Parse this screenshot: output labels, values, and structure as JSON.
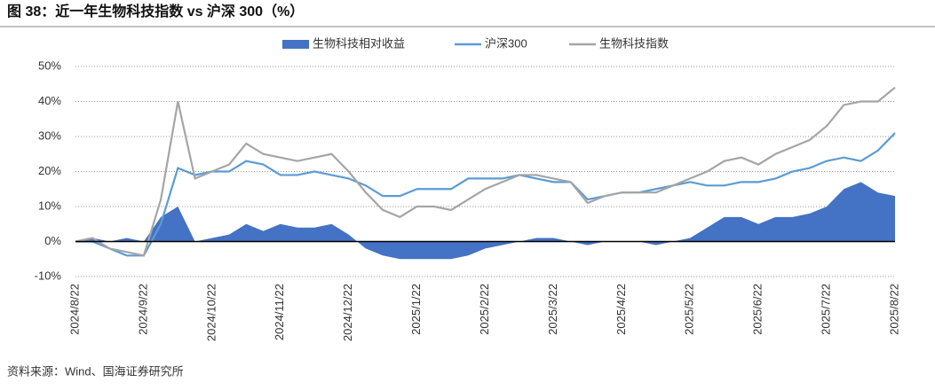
{
  "chart_data": {
    "type": "line",
    "title": "图 38：近一年生物科技指数 vs 沪深 300（%）",
    "source": "资料来源：Wind、国海证券研究所",
    "categories": [
      "2024/8/22",
      null,
      null,
      null,
      "2024/9/22",
      null,
      null,
      null,
      "2024/10/22",
      null,
      null,
      null,
      "2024/11/22",
      null,
      null,
      null,
      "2024/12/22",
      null,
      null,
      null,
      "2025/1/22",
      null,
      null,
      null,
      "2025/2/22",
      null,
      null,
      null,
      "2025/3/22",
      null,
      null,
      null,
      "2025/4/22",
      null,
      null,
      null,
      "2025/5/22",
      null,
      null,
      null,
      "2025/6/22",
      null,
      null,
      null,
      "2025/7/22",
      null,
      null,
      null,
      "2025/8/22"
    ],
    "ylim": [
      -10,
      50
    ],
    "yticks": [
      {
        "value": -10,
        "label": "-10%"
      },
      {
        "value": 0,
        "label": "0%"
      },
      {
        "value": 10,
        "label": "10%"
      },
      {
        "value": 20,
        "label": "20%"
      },
      {
        "value": 30,
        "label": "30%"
      },
      {
        "value": 40,
        "label": "40%"
      },
      {
        "value": 50,
        "label": "50%"
      }
    ],
    "grid": true,
    "legend": "top",
    "series": [
      {
        "name": "生物科技相对收益",
        "type": "area",
        "color": "#4472c4",
        "values": [
          0,
          1,
          0,
          1,
          0,
          7,
          10,
          0,
          1,
          2,
          5,
          3,
          5,
          4,
          4,
          5,
          2,
          -2,
          -4,
          -5,
          -5,
          -5,
          -5,
          -4,
          -2,
          -1,
          0,
          1,
          1,
          0,
          -1,
          0,
          0,
          0,
          -1,
          0,
          1,
          4,
          7,
          7,
          5,
          7,
          7,
          8,
          10,
          15,
          17,
          14,
          13
        ]
      },
      {
        "name": "沪深300",
        "type": "line",
        "color": "#5b9bd5",
        "values": [
          0,
          0,
          -2,
          -4,
          -4,
          5,
          21,
          19,
          20,
          20,
          23,
          22,
          19,
          19,
          20,
          19,
          18,
          16,
          13,
          13,
          15,
          15,
          15,
          18,
          18,
          18,
          19,
          18,
          17,
          17,
          12,
          13,
          14,
          14,
          15,
          16,
          17,
          16,
          16,
          17,
          17,
          18,
          20,
          21,
          23,
          24,
          23,
          26,
          31
        ]
      },
      {
        "name": "生物科技指数",
        "type": "line",
        "color": "#a5a5a5",
        "values": [
          0,
          1,
          -2,
          -3,
          -4,
          12,
          40,
          18,
          20,
          22,
          28,
          25,
          24,
          23,
          24,
          25,
          20,
          14,
          9,
          7,
          10,
          10,
          9,
          12,
          15,
          17,
          19,
          19,
          18,
          17,
          11,
          13,
          14,
          14,
          14,
          16,
          18,
          20,
          23,
          24,
          22,
          25,
          27,
          29,
          33,
          39,
          40,
          40,
          44
        ]
      }
    ]
  }
}
